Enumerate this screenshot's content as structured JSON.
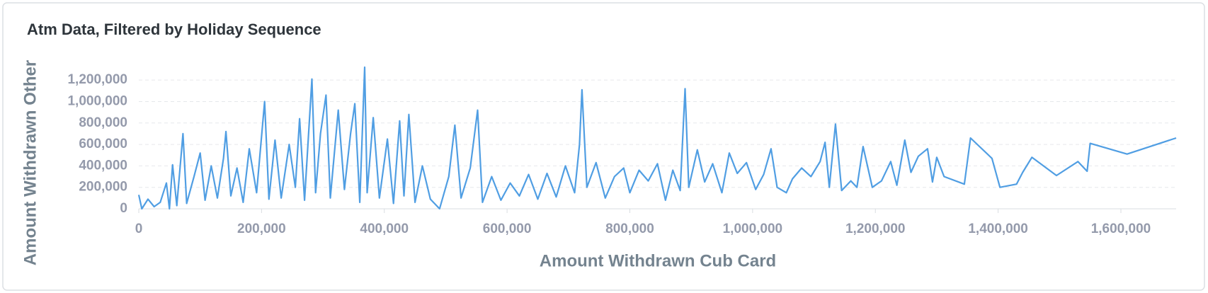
{
  "chart_data": {
    "type": "line",
    "title": "Atm Data, Filtered by Holiday Sequence",
    "x_label": "Amount Withdrawn Cub Card",
    "y_label": "Amount Withdrawn Other",
    "color": "#509ee3",
    "grid": true,
    "xlim": [
      0,
      1690000
    ],
    "ylim": [
      0,
      1320000
    ],
    "xticks": [
      0,
      {
        "value": 200000,
        "label": "200,000"
      },
      {
        "value": 400000,
        "label": "400,000"
      },
      {
        "value": 600000,
        "label": "600,000"
      },
      {
        "value": 800000,
        "label": "800,000"
      },
      {
        "value": 1000000,
        "label": "1,000,000"
      },
      {
        "value": 1200000,
        "label": "1,200,000"
      },
      {
        "value": 1400000,
        "label": "1,400,000"
      },
      {
        "value": 1600000,
        "label": "1,600,000"
      }
    ],
    "yticks": [
      0,
      {
        "value": 200000,
        "label": "200,000"
      },
      {
        "value": 400000,
        "label": "400,000"
      },
      {
        "value": 600000,
        "label": "600,000"
      },
      {
        "value": 800000,
        "label": "800,000"
      },
      {
        "value": 1000000,
        "label": "1,000,000"
      },
      {
        "value": 1200000,
        "label": "1,200,000"
      }
    ],
    "x": [
      0,
      5000,
      15000,
      25000,
      35000,
      45000,
      50000,
      55000,
      62000,
      72000,
      78000,
      90000,
      100000,
      108000,
      118000,
      128000,
      138000,
      142000,
      150000,
      160000,
      170000,
      180000,
      192000,
      205000,
      212000,
      222000,
      232000,
      245000,
      255000,
      262000,
      270000,
      282000,
      288000,
      296000,
      305000,
      312000,
      325000,
      335000,
      345000,
      352000,
      360000,
      368000,
      372000,
      382000,
      392000,
      405000,
      415000,
      425000,
      432000,
      440000,
      450000,
      462000,
      475000,
      490000,
      505000,
      515000,
      525000,
      540000,
      552000,
      560000,
      575000,
      590000,
      605000,
      620000,
      635000,
      650000,
      665000,
      680000,
      695000,
      710000,
      718000,
      722000,
      730000,
      745000,
      760000,
      775000,
      790000,
      800000,
      815000,
      830000,
      845000,
      858000,
      870000,
      882000,
      890000,
      896000,
      910000,
      922000,
      935000,
      950000,
      962000,
      975000,
      990000,
      1005000,
      1018000,
      1030000,
      1040000,
      1055000,
      1065000,
      1080000,
      1095000,
      1110000,
      1118000,
      1125000,
      1135000,
      1145000,
      1160000,
      1170000,
      1180000,
      1195000,
      1210000,
      1225000,
      1235000,
      1248000,
      1258000,
      1270000,
      1285000,
      1293000,
      1300000,
      1312000,
      1345000,
      1355000,
      1390000,
      1403000,
      1430000,
      1440000,
      1455000,
      1495000,
      1530000,
      1545000,
      1550000,
      1610000,
      1690000
    ],
    "values": [
      130000,
      0,
      90000,
      20000,
      60000,
      240000,
      0,
      410000,
      30000,
      700000,
      50000,
      300000,
      520000,
      80000,
      400000,
      100000,
      470000,
      720000,
      120000,
      380000,
      60000,
      560000,
      150000,
      1000000,
      90000,
      640000,
      100000,
      600000,
      200000,
      840000,
      80000,
      1210000,
      150000,
      700000,
      1060000,
      100000,
      920000,
      180000,
      700000,
      980000,
      60000,
      1320000,
      150000,
      850000,
      100000,
      650000,
      50000,
      820000,
      120000,
      880000,
      60000,
      400000,
      90000,
      0,
      300000,
      780000,
      100000,
      380000,
      920000,
      60000,
      300000,
      80000,
      240000,
      120000,
      320000,
      90000,
      330000,
      110000,
      400000,
      150000,
      600000,
      1110000,
      200000,
      430000,
      100000,
      300000,
      380000,
      150000,
      360000,
      260000,
      420000,
      80000,
      360000,
      170000,
      1120000,
      200000,
      550000,
      250000,
      420000,
      150000,
      520000,
      330000,
      430000,
      180000,
      320000,
      560000,
      200000,
      150000,
      280000,
      380000,
      300000,
      440000,
      620000,
      200000,
      790000,
      170000,
      260000,
      200000,
      580000,
      200000,
      260000,
      440000,
      220000,
      640000,
      340000,
      490000,
      560000,
      250000,
      480000,
      300000,
      230000,
      660000,
      470000,
      200000,
      230000,
      340000,
      480000,
      310000,
      440000,
      350000,
      610000,
      510000,
      660000
    ]
  }
}
